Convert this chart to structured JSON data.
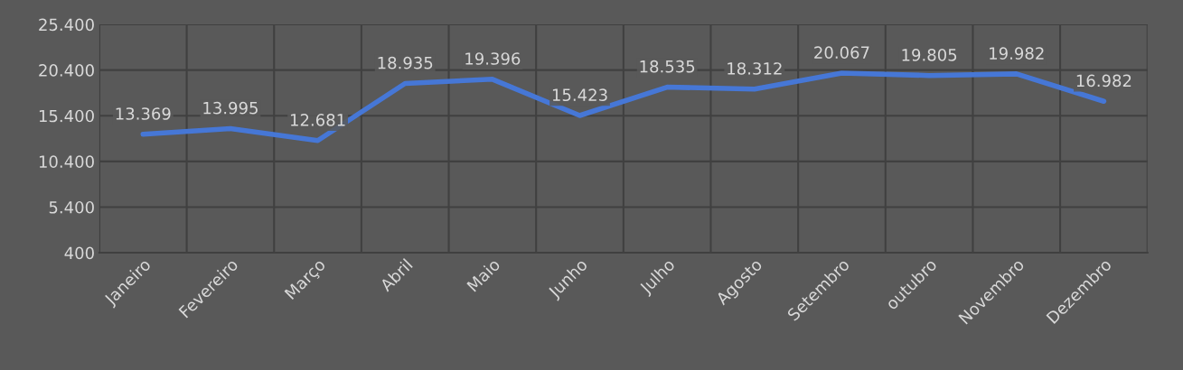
{
  "chart_data": {
    "type": "line",
    "categories": [
      "Janeiro",
      "Fevereiro",
      "Março",
      "Abril",
      "Maio",
      "Junho",
      "Julho",
      "Agosto",
      "Setembro",
      "outubro",
      "Novembro",
      "Dezembro"
    ],
    "series": [
      {
        "color": "#4677d6",
        "values": [
          13369,
          13995,
          12681,
          18935,
          19396,
          15423,
          18535,
          18312,
          20067,
          19805,
          19982,
          16982
        ],
        "value_labels": [
          "13.369",
          "13.995",
          "12.681",
          "18.935",
          "19.396",
          "15.423",
          "18.535",
          "18.312",
          "20.067",
          "19.805",
          "19.982",
          "16.982"
        ]
      }
    ],
    "ylim": [
      400,
      25400
    ],
    "yticks": [
      {
        "value": 400,
        "label": "400"
      },
      {
        "value": 5400,
        "label": "5.400"
      },
      {
        "value": 10400,
        "label": "10.400"
      },
      {
        "value": 15400,
        "label": "15.400"
      },
      {
        "value": 20400,
        "label": "20.400"
      },
      {
        "value": 25400,
        "label": "25.400"
      }
    ],
    "grid": true,
    "marker": "none",
    "line_style": "solid",
    "legend": false
  }
}
